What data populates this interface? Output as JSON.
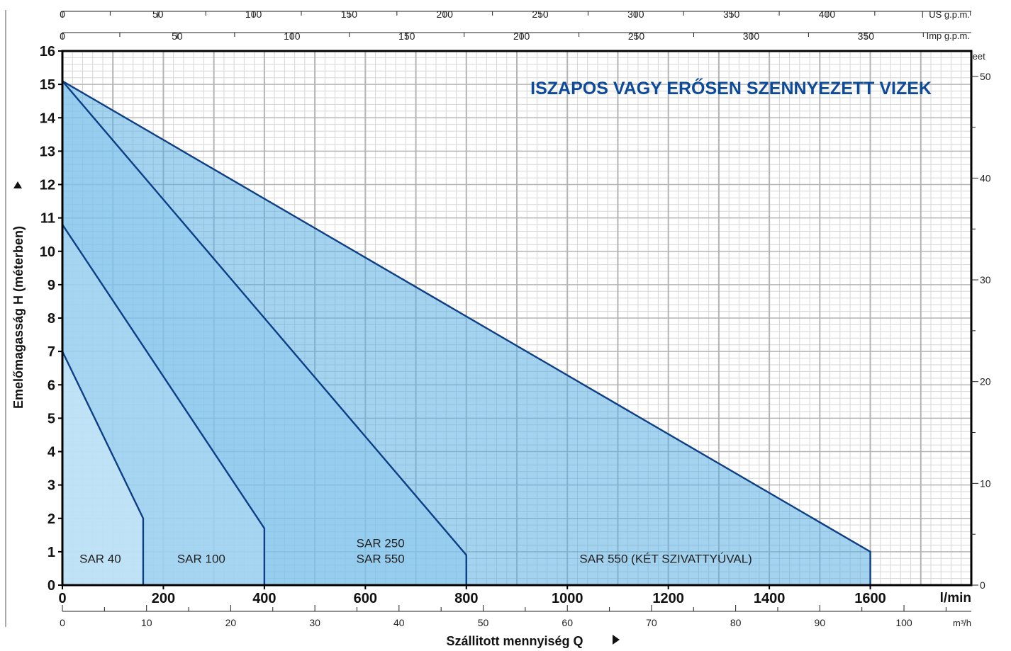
{
  "chart_data": {
    "type": "area",
    "title": "ISZAPOS VAGY ERŐSEN SZENNYEZETT VIZEK",
    "xlabel": "Szállitott mennyiség  Q",
    "ylabel": "Emelőmagasság  H  (méterben)",
    "x_unit": "l/min",
    "xlim": [
      0,
      1800
    ],
    "ylim": [
      0,
      16
    ],
    "grid": true,
    "x_ticks": [
      "0",
      "200",
      "400",
      "600",
      "800",
      "1000",
      "1200",
      "1400",
      "1600"
    ],
    "y_ticks": [
      "0",
      "1",
      "2",
      "3",
      "4",
      "5",
      "6",
      "7",
      "8",
      "9",
      "10",
      "11",
      "12",
      "13",
      "14",
      "15",
      "16"
    ],
    "secondary_axes": {
      "us_gpm": {
        "label": "US g.p.m.",
        "max": 475.5,
        "ticks": [
          "0",
          "50",
          "100",
          "150",
          "200",
          "250",
          "300",
          "350",
          "400"
        ]
      },
      "imp_gpm": {
        "label": "Imp g.p.m.",
        "max": 395.9,
        "ticks": [
          "0",
          "50",
          "100",
          "150",
          "200",
          "250",
          "300",
          "350"
        ]
      },
      "m3h": {
        "label": "m³/h",
        "max": 108,
        "ticks": [
          "0",
          "10",
          "20",
          "30",
          "40",
          "50",
          "60",
          "70",
          "80",
          "90",
          "100"
        ]
      },
      "feet": {
        "label": "feet",
        "max": 52.49,
        "ticks": [
          "0",
          "10",
          "20",
          "30",
          "40",
          "50"
        ]
      }
    },
    "series": [
      {
        "name": "SAR 40",
        "x": [
          0,
          160,
          160
        ],
        "y": [
          7,
          2,
          0
        ],
        "color": "#d4ecf9"
      },
      {
        "name": "SAR 100",
        "x": [
          0,
          400,
          400
        ],
        "y": [
          10.8,
          1.7,
          0
        ],
        "color": "#b2dbf3"
      },
      {
        "name": "SAR 250 / SAR 550",
        "x": [
          0,
          800,
          800
        ],
        "y": [
          15.1,
          0.9,
          0
        ],
        "color": "#8ccaee"
      },
      {
        "name": "SAR 550 (KÉT SZIVATTYÚVAL)",
        "x": [
          0,
          1600,
          1600
        ],
        "y": [
          15.1,
          1,
          0
        ],
        "color": "#5aafe3"
      }
    ],
    "region_labels": [
      {
        "lines": [
          "SAR 40"
        ],
        "x": 75,
        "y": 0.8
      },
      {
        "lines": [
          "SAR 100"
        ],
        "x": 275,
        "y": 0.8
      },
      {
        "lines": [
          "SAR 250",
          "SAR 550"
        ],
        "x": 630,
        "y": 0.8
      },
      {
        "lines": [
          "SAR 550 (KÉT SZIVATTYÚVAL)"
        ],
        "x": 1195,
        "y": 0.8
      }
    ]
  },
  "colors": {
    "line": "#0d3f86",
    "grid_major": "#b4b4b4",
    "grid_minor": "#d6d6d6",
    "title": "#0d4a9a"
  }
}
